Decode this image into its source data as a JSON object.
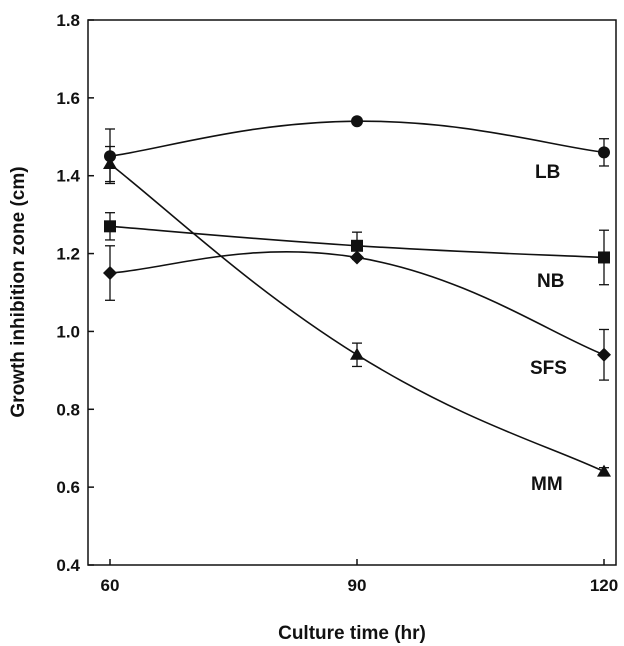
{
  "chart_data": {
    "type": "line",
    "xlabel": "Culture time (hr)",
    "ylabel": "Growth inhibition zone (cm)",
    "xlim": [
      60,
      120
    ],
    "ylim": [
      0.4,
      1.8
    ],
    "x_ticks": [
      60,
      90,
      120
    ],
    "y_ticks": [
      "0.4",
      "0.6",
      "0.8",
      "1.0",
      "1.2",
      "1.4",
      "1.6",
      "1.8"
    ],
    "grid": false,
    "legend": "none",
    "series": [
      {
        "name": "LB",
        "marker": "circle",
        "x": [
          60,
          90,
          120
        ],
        "y": [
          1.45,
          1.54,
          1.46
        ],
        "err": [
          0.07,
          0.0,
          0.035
        ]
      },
      {
        "name": "NB",
        "marker": "square",
        "x": [
          60,
          90,
          120
        ],
        "y": [
          1.27,
          1.22,
          1.19
        ],
        "err": [
          0.035,
          0.035,
          0.07
        ]
      },
      {
        "name": "SFS",
        "marker": "diamond",
        "x": [
          60,
          90,
          120
        ],
        "y": [
          1.15,
          1.19,
          0.94
        ],
        "err": [
          0.07,
          0.0,
          0.065
        ]
      },
      {
        "name": "MM",
        "marker": "triangle",
        "x": [
          60,
          90,
          120
        ],
        "y": [
          1.43,
          0.94,
          0.64
        ],
        "err": [
          0.045,
          0.03,
          0.01
        ]
      }
    ]
  }
}
